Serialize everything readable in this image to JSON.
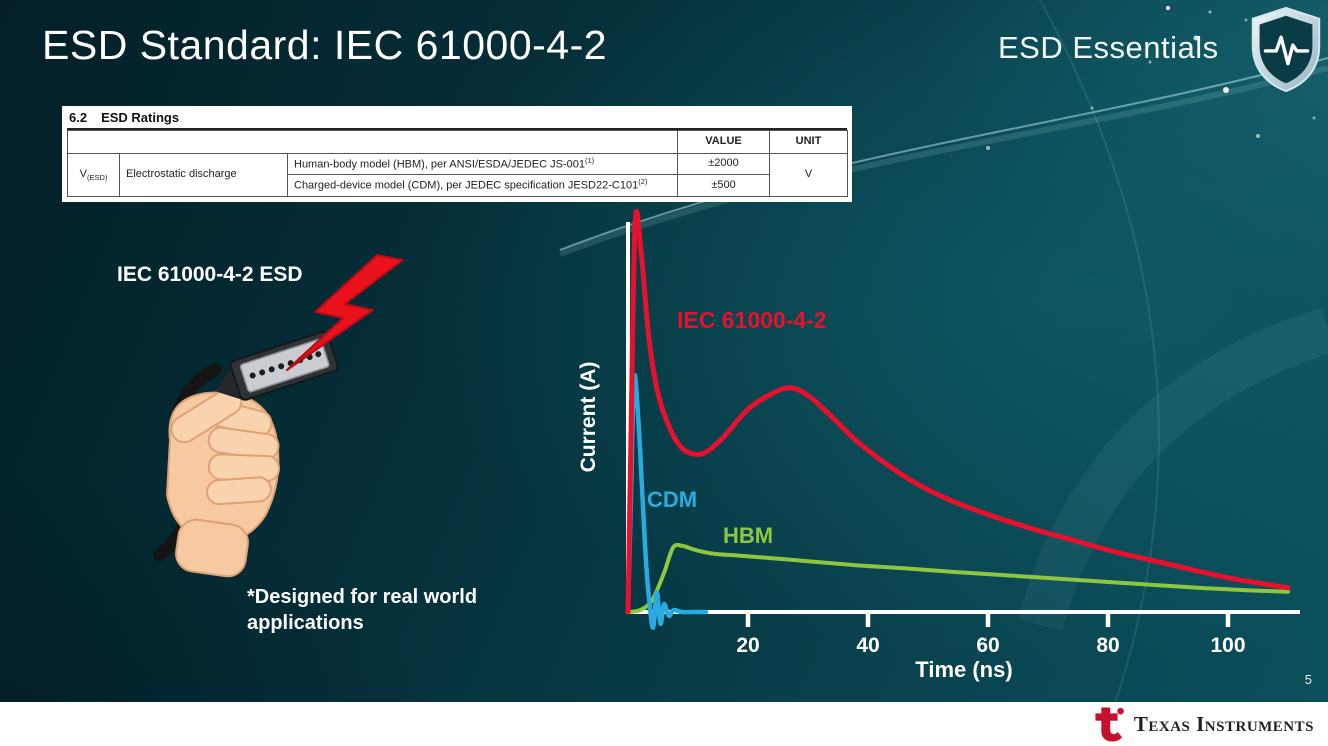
{
  "slide": {
    "title": "ESD Standard: IEC 61000-4-2",
    "brand": "ESD Essentials",
    "page_number": "5"
  },
  "ratings_table": {
    "section_number": "6.2",
    "section_title": "ESD Ratings",
    "headers": {
      "value": "VALUE",
      "unit": "UNIT"
    },
    "param_symbol": "V",
    "param_symbol_sub": "(ESD)",
    "param_name": "Electrostatic discharge",
    "rows": [
      {
        "desc": "Human-body model (HBM), per ANSI/ESDA/JEDEC JS-001",
        "desc_sup": "(1)",
        "value": "±2000"
      },
      {
        "desc": "Charged-device model (CDM), per JEDEC specification JESD22-C101",
        "desc_sup": "(2)",
        "value": "±500"
      }
    ],
    "unit_value": "V"
  },
  "left": {
    "esd_label": "IEC 61000-4-2 ESD",
    "footnote": "*Designed for real world applications"
  },
  "chart_data": {
    "type": "line",
    "title": "",
    "xlabel": "Time (ns)",
    "ylabel": "Current (A)",
    "xlim": [
      0,
      112
    ],
    "x_ticks": [
      20,
      40,
      60,
      80,
      100
    ],
    "y_ticks": [],
    "y_note": "normalized amplitude (y axis unlabeled in figure)",
    "grid": false,
    "axis_color": "#ffffff",
    "series": [
      {
        "name": "IEC 61000-4-2",
        "color": "#e8112d",
        "points": [
          [
            0,
            0
          ],
          [
            0.5,
            0.45
          ],
          [
            1.2,
            1.0
          ],
          [
            2.2,
            0.92
          ],
          [
            3.5,
            0.7
          ],
          [
            5,
            0.56
          ],
          [
            7,
            0.47
          ],
          [
            9,
            0.42
          ],
          [
            11,
            0.405
          ],
          [
            13,
            0.41
          ],
          [
            16,
            0.45
          ],
          [
            20,
            0.52
          ],
          [
            24,
            0.56
          ],
          [
            27,
            0.575
          ],
          [
            30,
            0.555
          ],
          [
            34,
            0.5
          ],
          [
            38,
            0.44
          ],
          [
            43,
            0.38
          ],
          [
            48,
            0.33
          ],
          [
            54,
            0.285
          ],
          [
            60,
            0.25
          ],
          [
            67,
            0.215
          ],
          [
            74,
            0.185
          ],
          [
            81,
            0.155
          ],
          [
            88,
            0.13
          ],
          [
            95,
            0.105
          ],
          [
            101,
            0.085
          ],
          [
            106,
            0.072
          ],
          [
            110,
            0.062
          ]
        ]
      },
      {
        "name": "CDM",
        "color": "#29abe2",
        "points": [
          [
            0,
            0
          ],
          [
            0.5,
            0.3
          ],
          [
            1,
            0.6
          ],
          [
            1.7,
            0.5
          ],
          [
            2.4,
            0.3
          ],
          [
            3,
            0.13
          ],
          [
            3.6,
            0.02
          ],
          [
            4.2,
            -0.04
          ],
          [
            4.8,
            0.05
          ],
          [
            5.4,
            -0.03
          ],
          [
            6,
            0.02
          ],
          [
            6.8,
            -0.01
          ],
          [
            7.6,
            0.005
          ],
          [
            9,
            0
          ],
          [
            11,
            0
          ],
          [
            13,
            0
          ]
        ]
      },
      {
        "name": "HBM",
        "color": "#8dc63f",
        "points": [
          [
            0,
            0
          ],
          [
            2,
            0.005
          ],
          [
            4,
            0.03
          ],
          [
            6,
            0.1
          ],
          [
            7.5,
            0.165
          ],
          [
            9,
            0.17
          ],
          [
            11,
            0.16
          ],
          [
            14,
            0.15
          ],
          [
            18,
            0.145
          ],
          [
            24,
            0.138
          ],
          [
            30,
            0.13
          ],
          [
            38,
            0.12
          ],
          [
            46,
            0.112
          ],
          [
            55,
            0.102
          ],
          [
            65,
            0.092
          ],
          [
            75,
            0.082
          ],
          [
            85,
            0.072
          ],
          [
            95,
            0.062
          ],
          [
            103,
            0.056
          ],
          [
            110,
            0.052
          ]
        ]
      }
    ]
  },
  "footer": {
    "logo_text": "Texas Instruments"
  }
}
